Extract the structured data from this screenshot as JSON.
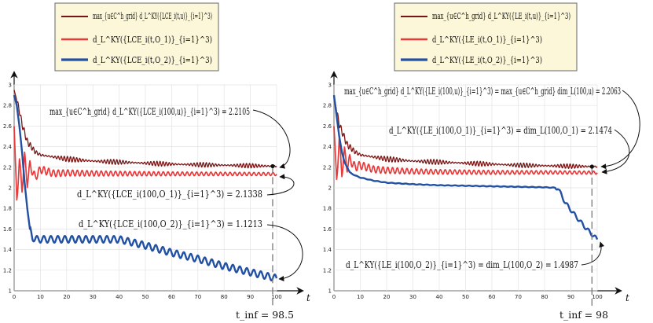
{
  "chart_data": [
    {
      "type": "line",
      "id": "left",
      "xlim": [
        0,
        100
      ],
      "ylim": [
        1,
        3
      ],
      "xticks": [
        "0",
        "10",
        "20",
        "30",
        "40",
        "50",
        "60",
        "70",
        "80",
        "90",
        "100"
      ],
      "yticks": [
        "1",
        "1.2",
        "1.4",
        "1.6",
        "1.8",
        "2",
        "2.2",
        "2.4",
        "2.6",
        "2.8",
        "3"
      ],
      "xlabel": "t",
      "colors": {
        "max": "#7a1414",
        "o1": "#e83a3a",
        "o2": "#2251a3"
      },
      "legend": [
        {
          "key": "max",
          "text": "max_{u∈C^h_grid} d_L^KY({LCE_i(t,u)}_{i=1}^3)"
        },
        {
          "key": "o1",
          "text": "d_L^KY({LCE_i(t,O_1)}_{i=1}^3)"
        },
        {
          "key": "o2",
          "text": "d_L^KY({LCE_i(t,O_2)}_{i=1}^3)"
        }
      ],
      "final_values": {
        "max": 2.2105,
        "o1": 2.1338,
        "o2": 1.1213
      },
      "t_inf": 98.5,
      "t_inf_label": "t_inf = 98.5",
      "annotations": [
        "max_{u∈C^h_grid} d_L^KY({LCE_i(100,u)}_{i=1}^3) = 2.2105",
        "d_L^KY({LCE_i(100,O_1)}_{i=1}^3) = 2.1338",
        "d_L^KY({LCE_i(100,O_2)}_{i=1}^3) = 1.1213"
      ],
      "series": [
        {
          "key": "max",
          "name": "max over grid",
          "t": [
            0,
            1,
            2,
            3,
            5,
            8,
            10,
            15,
            20,
            30,
            40,
            50,
            60,
            70,
            80,
            90,
            100
          ],
          "values": [
            2.95,
            2.85,
            2.75,
            2.62,
            2.45,
            2.35,
            2.32,
            2.3,
            2.28,
            2.26,
            2.25,
            2.24,
            2.23,
            2.225,
            2.22,
            2.215,
            2.2105
          ]
        },
        {
          "key": "o1",
          "name": "O1",
          "t": [
            0,
            1,
            2,
            3,
            4,
            5,
            6,
            8,
            10,
            15,
            20,
            30,
            40,
            60,
            80,
            100
          ],
          "values": [
            2.6,
            1.9,
            2.25,
            2.0,
            2.3,
            2.05,
            2.22,
            2.1,
            2.18,
            2.14,
            2.145,
            2.14,
            2.138,
            2.136,
            2.135,
            2.1338
          ]
        },
        {
          "key": "o2",
          "name": "O2",
          "t": [
            0,
            1,
            2,
            3,
            4,
            5,
            6,
            7,
            8,
            10,
            15,
            20,
            30,
            40,
            50,
            60,
            70,
            80,
            90,
            100
          ],
          "values": [
            2.9,
            2.8,
            2.6,
            2.35,
            2.05,
            1.8,
            1.6,
            1.52,
            1.5,
            1.5,
            1.5,
            1.5,
            1.5,
            1.5,
            1.44,
            1.37,
            1.31,
            1.24,
            1.18,
            1.1213
          ]
        }
      ]
    },
    {
      "type": "line",
      "id": "right",
      "xlim": [
        0,
        100
      ],
      "ylim": [
        1,
        3
      ],
      "xticks": [
        "0",
        "10",
        "20",
        "30",
        "40",
        "50",
        "60",
        "70",
        "80",
        "90",
        "100"
      ],
      "yticks": [
        "1",
        "1.2",
        "1.4",
        "1.6",
        "1.8",
        "2",
        "2.2",
        "2.4",
        "2.6",
        "2.8",
        "3"
      ],
      "xlabel": "t",
      "colors": {
        "max": "#7a1414",
        "o1": "#e83a3a",
        "o2": "#2251a3"
      },
      "legend": [
        {
          "key": "max",
          "text": "max_{u∈C^h_grid} d_L^KY({LE_i(t,u)}_{i=1}^3)"
        },
        {
          "key": "o1",
          "text": "d_L^KY({LE_i(t,O_1)}_{i=1}^3)"
        },
        {
          "key": "o2",
          "text": "d_L^KY({LE_i(t,O_2)}_{i=1}^3)"
        }
      ],
      "final_values": {
        "max": 2.2063,
        "o1": 2.1474,
        "o2": 1.4987
      },
      "t_inf": 98,
      "t_inf_label": "t_inf = 98",
      "annotations": [
        "max_{u∈C^h_grid} d_L^KY({LE_i(100,u)}_{i=1}^3) = max_{u∈C^h_grid} dim_L(100,u) = 2.2063",
        "d_L^KY({LE_i(100,O_1)}_{i=1}^3) = dim_L(100,O_1) = 2.1474",
        "d_L^KY({LE_i(100,O_2)}_{i=1}^3) = dim_L(100,O_2) = 1.4987"
      ],
      "series": [
        {
          "key": "max",
          "name": "max over grid",
          "t": [
            0,
            1,
            2,
            3,
            5,
            8,
            10,
            15,
            20,
            30,
            40,
            50,
            60,
            70,
            80,
            90,
            100
          ],
          "values": [
            2.9,
            2.75,
            2.62,
            2.55,
            2.42,
            2.35,
            2.32,
            2.3,
            2.28,
            2.26,
            2.25,
            2.24,
            2.23,
            2.22,
            2.215,
            2.21,
            2.2063
          ]
        },
        {
          "key": "o1",
          "name": "O1",
          "t": [
            0,
            1,
            2,
            3,
            4,
            5,
            6,
            8,
            10,
            15,
            20,
            30,
            40,
            60,
            80,
            100
          ],
          "values": [
            2.6,
            2.1,
            2.45,
            2.15,
            2.35,
            2.2,
            2.28,
            2.2,
            2.22,
            2.18,
            2.17,
            2.16,
            2.155,
            2.15,
            2.15,
            2.1474
          ]
        },
        {
          "key": "o2",
          "name": "O2",
          "t": [
            0,
            1,
            2,
            3,
            4,
            5,
            6,
            8,
            10,
            15,
            20,
            30,
            40,
            50,
            60,
            70,
            80,
            85,
            88,
            92,
            96,
            100
          ],
          "values": [
            2.9,
            2.7,
            2.5,
            2.35,
            2.25,
            2.2,
            2.15,
            2.12,
            2.1,
            2.07,
            2.05,
            2.035,
            2.025,
            2.02,
            2.015,
            2.01,
            2.005,
            2.0,
            1.85,
            1.72,
            1.6,
            1.4987
          ]
        }
      ]
    }
  ]
}
